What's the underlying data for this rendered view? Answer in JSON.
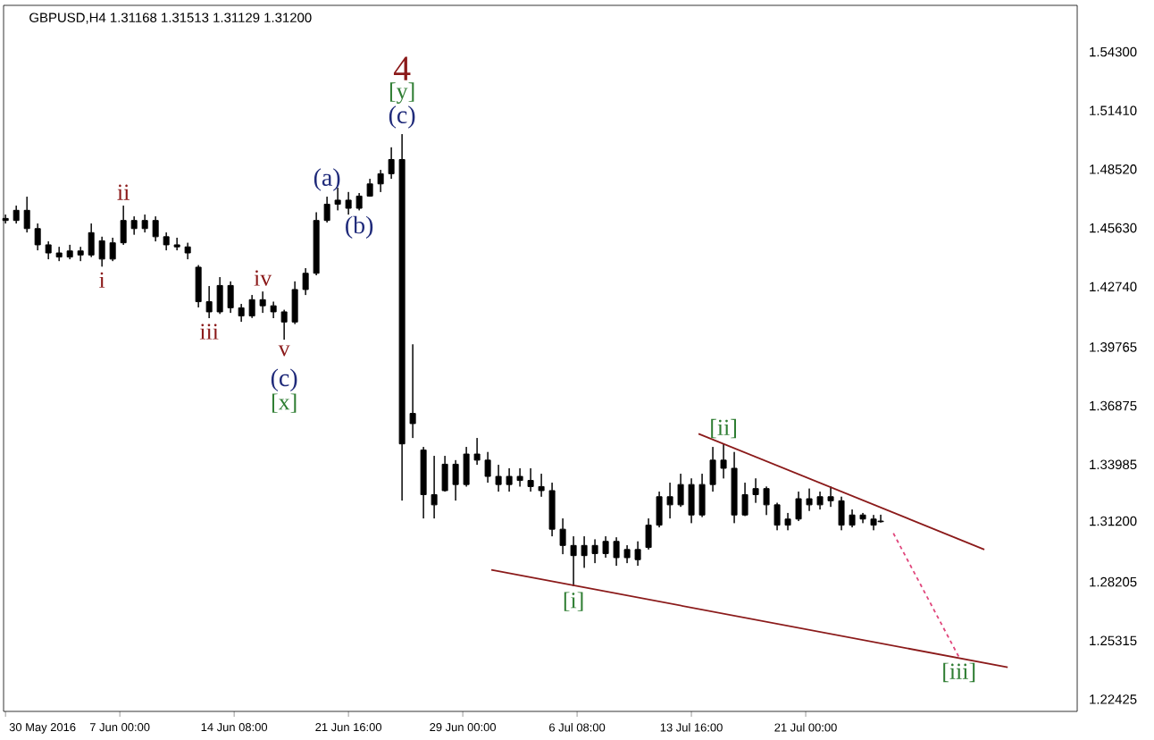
{
  "chart_data": {
    "type": "candlestick",
    "title": "GBPUSD,H4  1.31168 1.31513 1.31129 1.31200",
    "xlim": [
      "2016-05-30T13:00",
      "2016-08-07T10:00"
    ],
    "ylim": [
      1.2183,
      1.5659
    ],
    "xticks": [
      {
        "value": "2016-05-30T16:00",
        "label": "30 May 2016"
      },
      {
        "value": "2016-06-07T00:00",
        "label": "7 Jun 00:00"
      },
      {
        "value": "2016-06-14T08:00",
        "label": "14 Jun 08:00"
      },
      {
        "value": "2016-06-21T16:00",
        "label": "21 Jun 16:00"
      },
      {
        "value": "2016-06-29T00:00",
        "label": "29 Jun 00:00"
      },
      {
        "value": "2016-07-06T08:00",
        "label": "6 Jul 08:00"
      },
      {
        "value": "2016-07-13T16:00",
        "label": "13 Jul 16:00"
      },
      {
        "value": "2016-07-21T00:00",
        "label": "21 Jul 00:00"
      }
    ],
    "yticks": [
      {
        "value": 1.543,
        "label": "1.54300"
      },
      {
        "value": 1.5141,
        "label": "1.51410"
      },
      {
        "value": 1.4852,
        "label": "1.48520"
      },
      {
        "value": 1.4563,
        "label": "1.45630"
      },
      {
        "value": 1.4274,
        "label": "1.42740"
      },
      {
        "value": 1.39765,
        "label": "1.39765"
      },
      {
        "value": 1.36875,
        "label": "1.36875"
      },
      {
        "value": 1.33985,
        "label": "1.33985"
      },
      {
        "value": 1.312,
        "label": "1.31200"
      },
      {
        "value": 1.28205,
        "label": "1.28205"
      },
      {
        "value": 1.25315,
        "label": "1.25315"
      },
      {
        "value": 1.22425,
        "label": "1.22425"
      }
    ],
    "series": [
      {
        "color": "#000000",
        "x": [
          "2016-05-30T16:00",
          "2016-05-31T08:30",
          "2016-06-01T01:00",
          "2016-06-01T17:30",
          "2016-06-02T10:00",
          "2016-06-03T02:30",
          "2016-06-03T19:00",
          "2016-06-04T11:30",
          "2016-06-05T04:00",
          "2016-06-05T20:30",
          "2016-06-06T13:00",
          "2016-06-07T05:30",
          "2016-06-07T22:00",
          "2016-06-08T14:30",
          "2016-06-09T07:00",
          "2016-06-09T23:30",
          "2016-06-10T16:00",
          "2016-06-11T08:30",
          "2016-06-12T01:00",
          "2016-06-12T17:30",
          "2016-06-13T10:00",
          "2016-06-14T02:30",
          "2016-06-14T19:00",
          "2016-06-15T11:30",
          "2016-06-16T04:00",
          "2016-06-16T20:30",
          "2016-06-17T13:00",
          "2016-06-18T05:30",
          "2016-06-18T22:00",
          "2016-06-19T14:30",
          "2016-06-20T07:00",
          "2016-06-20T23:30",
          "2016-06-21T16:00",
          "2016-06-22T08:30",
          "2016-06-23T01:00",
          "2016-06-23T17:30",
          "2016-06-24T10:00",
          "2016-06-25T02:30",
          "2016-06-25T19:00",
          "2016-06-26T11:30",
          "2016-06-27T04:00",
          "2016-06-27T20:30",
          "2016-06-28T13:00",
          "2016-06-29T05:30",
          "2016-06-29T22:00",
          "2016-06-30T14:30",
          "2016-07-01T07:00",
          "2016-07-01T23:30",
          "2016-07-02T16:00",
          "2016-07-03T08:30",
          "2016-07-04T01:00",
          "2016-07-04T17:30",
          "2016-07-05T10:00",
          "2016-07-06T02:30",
          "2016-07-06T19:00",
          "2016-07-07T11:30",
          "2016-07-08T04:00",
          "2016-07-08T20:30",
          "2016-07-09T13:00",
          "2016-07-10T05:30",
          "2016-07-10T22:00",
          "2016-07-11T14:30",
          "2016-07-12T07:00",
          "2016-07-12T23:30",
          "2016-07-13T16:00",
          "2016-07-14T08:30",
          "2016-07-15T01:00",
          "2016-07-15T17:30",
          "2016-07-16T10:00",
          "2016-07-17T02:30",
          "2016-07-17T19:00",
          "2016-07-18T11:30",
          "2016-07-19T04:00",
          "2016-07-19T20:30",
          "2016-07-20T13:00",
          "2016-07-21T05:30",
          "2016-07-21T22:00",
          "2016-07-22T14:30",
          "2016-07-23T07:00",
          "2016-07-23T23:30",
          "2016-07-24T16:00",
          "2016-07-25T08:30",
          "2016-07-25T19:30"
        ],
        "ohlc": [
          [
            1.46,
            1.4629,
            1.4585,
            1.461
          ],
          [
            1.46,
            1.4673,
            1.4585,
            1.465
          ],
          [
            1.465,
            1.4717,
            1.4541,
            1.456
          ],
          [
            1.456,
            1.4585,
            1.4453,
            1.448
          ],
          [
            1.448,
            1.4497,
            1.4409,
            1.444
          ],
          [
            1.444,
            1.447,
            1.44,
            1.442
          ],
          [
            1.442,
            1.448,
            1.4409,
            1.445
          ],
          [
            1.445,
            1.447,
            1.44,
            1.443
          ],
          [
            1.443,
            1.4585,
            1.442,
            1.454
          ],
          [
            1.45,
            1.452,
            1.4373,
            1.441
          ],
          [
            1.441,
            1.4515,
            1.44,
            1.449
          ],
          [
            1.449,
            1.4673,
            1.448,
            1.46
          ],
          [
            1.46,
            1.462,
            1.453,
            1.456
          ],
          [
            1.456,
            1.4629,
            1.4541,
            1.46
          ],
          [
            1.46,
            1.462,
            1.4497,
            1.452
          ],
          [
            1.452,
            1.4541,
            1.4453,
            1.448
          ],
          [
            1.448,
            1.4515,
            1.4453,
            1.447
          ],
          [
            1.447,
            1.449,
            1.4409,
            1.444
          ],
          [
            1.437,
            1.438,
            1.4172,
            1.42
          ],
          [
            1.42,
            1.4277,
            1.4119,
            1.415
          ],
          [
            1.415,
            1.4321,
            1.414,
            1.428
          ],
          [
            1.428,
            1.43,
            1.4145,
            1.417
          ],
          [
            1.417,
            1.4189,
            1.4101,
            1.413
          ],
          [
            1.413,
            1.4233,
            1.412,
            1.421
          ],
          [
            1.421,
            1.425,
            1.4145,
            1.418
          ],
          [
            1.418,
            1.42,
            1.4119,
            1.415
          ],
          [
            1.415,
            1.416,
            1.4013,
            1.41
          ],
          [
            1.41,
            1.43,
            1.409,
            1.426
          ],
          [
            1.426,
            1.4365,
            1.4233,
            1.434
          ],
          [
            1.434,
            1.464,
            1.433,
            1.46
          ],
          [
            1.46,
            1.4717,
            1.459,
            1.468
          ],
          [
            1.468,
            1.4761,
            1.465,
            1.47
          ],
          [
            1.47,
            1.474,
            1.4629,
            1.466
          ],
          [
            1.466,
            1.4735,
            1.465,
            1.472
          ],
          [
            1.472,
            1.4805,
            1.4717,
            1.478
          ],
          [
            1.478,
            1.4849,
            1.474,
            1.483
          ],
          [
            1.483,
            1.496,
            1.4805,
            1.49
          ],
          [
            1.49,
            1.5025,
            1.3221,
            1.35
          ],
          [
            1.365,
            1.399,
            1.3529,
            1.36
          ],
          [
            1.347,
            1.3485,
            1.3133,
            1.325
          ],
          [
            1.325,
            1.3441,
            1.3133,
            1.32
          ],
          [
            1.327,
            1.3441,
            1.3265,
            1.34
          ],
          [
            1.34,
            1.342,
            1.3221,
            1.33
          ],
          [
            1.33,
            1.3485,
            1.329,
            1.345
          ],
          [
            1.345,
            1.3529,
            1.3397,
            1.342
          ],
          [
            1.342,
            1.346,
            1.3309,
            1.334
          ],
          [
            1.334,
            1.3397,
            1.3265,
            1.33
          ],
          [
            1.33,
            1.338,
            1.3265,
            1.334
          ],
          [
            1.334,
            1.338,
            1.329,
            1.332
          ],
          [
            1.332,
            1.338,
            1.3265,
            1.329
          ],
          [
            1.329,
            1.3353,
            1.324,
            1.327
          ],
          [
            1.327,
            1.3309,
            1.3045,
            1.308
          ],
          [
            1.308,
            1.3133,
            1.2957,
            1.3
          ],
          [
            1.3,
            1.3045,
            1.2799,
            1.295
          ],
          [
            1.295,
            1.3045,
            1.289,
            1.3
          ],
          [
            1.3,
            1.303,
            1.2913,
            1.296
          ],
          [
            1.296,
            1.3045,
            1.294,
            1.302
          ],
          [
            1.302,
            1.304,
            1.29,
            1.294
          ],
          [
            1.294,
            1.3001,
            1.2913,
            1.298
          ],
          [
            1.298,
            1.302,
            1.29,
            1.293
          ],
          [
            1.299,
            1.3133,
            1.298,
            1.31
          ],
          [
            1.31,
            1.3265,
            1.3089,
            1.324
          ],
          [
            1.324,
            1.3309,
            1.3133,
            1.32
          ],
          [
            1.32,
            1.3353,
            1.319,
            1.33
          ],
          [
            1.33,
            1.333,
            1.311,
            1.315
          ],
          [
            1.315,
            1.3353,
            1.314,
            1.33
          ],
          [
            1.33,
            1.3485,
            1.3265,
            1.342
          ],
          [
            1.342,
            1.35,
            1.333,
            1.338
          ],
          [
            1.338,
            1.346,
            1.311,
            1.315
          ],
          [
            1.315,
            1.3309,
            1.3145,
            1.325
          ],
          [
            1.325,
            1.333,
            1.321,
            1.328
          ],
          [
            1.328,
            1.329,
            1.315,
            1.32
          ],
          [
            1.32,
            1.321,
            1.3075,
            1.31
          ],
          [
            1.31,
            1.316,
            1.3075,
            1.313
          ],
          [
            1.313,
            1.3265,
            1.312,
            1.323
          ],
          [
            1.323,
            1.328,
            1.317,
            1.32
          ],
          [
            1.32,
            1.3265,
            1.3177,
            1.324
          ],
          [
            1.324,
            1.329,
            1.319,
            1.322
          ],
          [
            1.322,
            1.324,
            1.3075,
            1.31
          ],
          [
            1.31,
            1.3177,
            1.3089,
            1.315
          ],
          [
            1.315,
            1.316,
            1.311,
            1.313
          ],
          [
            1.313,
            1.315,
            1.3075,
            1.31
          ],
          [
            1.31168,
            1.31513,
            1.31129,
            1.312
          ]
        ]
      },
      {
        "type": "line",
        "color": "#8b1a1a",
        "x": [
          "2016-07-14T03:00",
          "2016-08-01T11:00"
        ],
        "values": [
          1.355,
          1.298
        ]
      },
      {
        "type": "line",
        "color": "#8b1a1a",
        "x": [
          "2016-06-30T20:00",
          "2016-08-02T23:00"
        ],
        "values": [
          1.288,
          1.24
        ]
      },
      {
        "type": "line",
        "color": "#e0457b",
        "line_style": "dashed",
        "x": [
          "2016-07-26T15:00",
          "2016-07-30T20:00"
        ],
        "values": [
          1.306,
          1.245
        ]
      }
    ],
    "annotations": [
      {
        "text": "4",
        "x": "2016-06-25T02:30",
        "y": 1.5025
      },
      {
        "text": "[y]",
        "x": "2016-06-25T02:30",
        "y": 1.5025
      },
      {
        "text": "(c)",
        "x": "2016-06-25T02:30",
        "y": 1.5025
      },
      {
        "text": "ii",
        "x": "2016-06-07T05:30",
        "y": 1.4673
      },
      {
        "text": "i",
        "x": "2016-06-05T20:30",
        "y": 1.4373
      },
      {
        "text": "iii",
        "x": "2016-06-12T17:30",
        "y": 1.4119
      },
      {
        "text": "iv",
        "x": "2016-06-16T04:00",
        "y": 1.425
      },
      {
        "text": "v",
        "x": "2016-06-17T13:00",
        "y": 1.4013
      },
      {
        "text": "(c)",
        "x": "2016-06-17T13:00",
        "y": 1.4013
      },
      {
        "text": "[x]",
        "x": "2016-06-17T13:00",
        "y": 1.4013
      },
      {
        "text": "(a)",
        "x": "2016-06-20T07:00",
        "y": 1.4717
      },
      {
        "text": "(b)",
        "x": "2016-06-22T08:30",
        "y": 1.465
      },
      {
        "text": "[ii]",
        "x": "2016-07-15T17:30",
        "y": 1.35
      },
      {
        "text": "[i]",
        "x": "2016-07-06T02:30",
        "y": 1.2799
      },
      {
        "text": "[iii]",
        "x": "2016-07-30T20:00",
        "y": 1.245
      }
    ]
  }
}
